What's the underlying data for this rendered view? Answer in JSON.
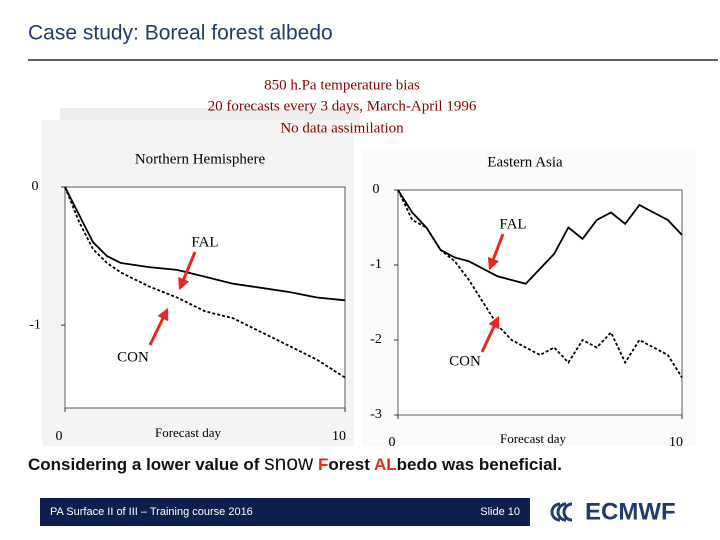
{
  "slide": {
    "title": "Case study: Boreal forest albedo",
    "header": [
      "850 h.Pa temperature bias",
      "20 forecasts every 3 days, March-April 1996",
      "No data assimilation"
    ],
    "conclusion": [
      "Considering a lower value of",
      "snow",
      "F",
      "orest",
      "AL",
      "bedo was beneficial."
    ],
    "footer": "PA Surface II of III – Training course 2016",
    "slide_number": "Slide 10",
    "logo": "ECMWF"
  },
  "chart_data": [
    {
      "type": "line",
      "title": "Northern Hemisphere",
      "x_label": "Forecast day",
      "x": [
        0,
        0.5,
        1,
        1.5,
        2,
        3,
        4,
        5,
        6,
        7,
        8,
        9,
        10
      ],
      "series": [
        {
          "name": "FAL",
          "color": "#000000",
          "dashed": false,
          "values": [
            0,
            -0.2,
            -0.4,
            -0.5,
            -0.55,
            -0.58,
            -0.6,
            -0.65,
            -0.7,
            -0.73,
            -0.76,
            -0.8,
            -0.82
          ]
        },
        {
          "name": "CON",
          "color": "#000000",
          "dashed": true,
          "values": [
            0,
            -0.25,
            -0.45,
            -0.55,
            -0.62,
            -0.72,
            -0.8,
            -0.9,
            -0.95,
            -1.05,
            -1.15,
            -1.25,
            -1.38
          ]
        }
      ],
      "xlim": [
        0,
        10
      ],
      "ylim": [
        -1.6,
        0
      ],
      "xticks": [
        0,
        10
      ],
      "yticks": [
        0,
        -1
      ]
    },
    {
      "type": "line",
      "title": "Eastern Asia",
      "x_label": "Forecast day",
      "x": [
        0,
        0.5,
        1,
        1.5,
        2,
        2.5,
        3,
        3.5,
        4,
        4.5,
        5,
        5.5,
        6,
        6.5,
        7,
        7.5,
        8,
        8.5,
        9,
        9.5,
        10
      ],
      "series": [
        {
          "name": "FAL",
          "color": "#000000",
          "dashed": false,
          "values": [
            0,
            -0.3,
            -0.5,
            -0.8,
            -0.9,
            -0.95,
            -1.05,
            -1.15,
            -1.2,
            -1.25,
            -1.05,
            -0.85,
            -0.5,
            -0.65,
            -0.4,
            -0.3,
            -0.45,
            -0.2,
            -0.3,
            -0.4,
            -0.6
          ]
        },
        {
          "name": "CON",
          "color": "#000000",
          "dashed": true,
          "values": [
            0,
            -0.4,
            -0.5,
            -0.8,
            -0.95,
            -1.2,
            -1.5,
            -1.8,
            -2.0,
            -2.1,
            -2.2,
            -2.1,
            -2.3,
            -2.0,
            -2.1,
            -1.9,
            -2.3,
            -2.0,
            -2.1,
            -2.2,
            -2.5
          ]
        }
      ],
      "xlim": [
        0,
        10
      ],
      "ylim": [
        -3,
        0
      ],
      "xticks": [
        0,
        10
      ],
      "yticks": [
        0,
        -1,
        -2,
        -3
      ]
    }
  ]
}
